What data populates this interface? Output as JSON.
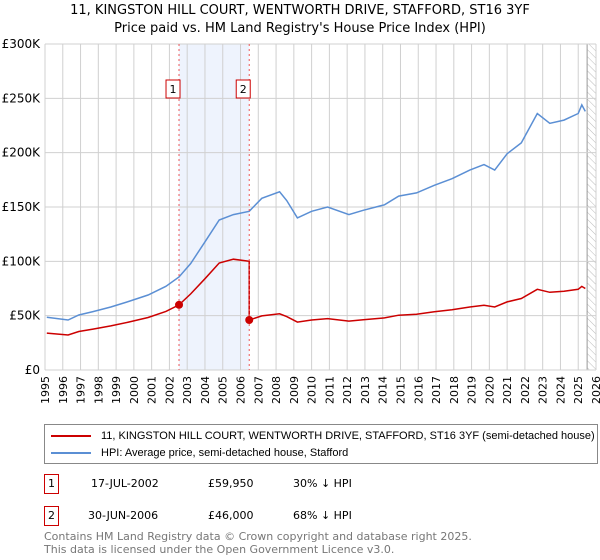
{
  "chart_data": {
    "type": "line",
    "title": "11, KINGSTON HILL COURT, WENTWORTH DRIVE, STAFFORD, ST16 3YF",
    "subtitle": "Price paid vs. HM Land Registry's House Price Index (HPI)",
    "xlim": [
      1995,
      2026
    ],
    "ylim": [
      0,
      300000
    ],
    "y_ticks": [
      {
        "v": 0,
        "label": "£0"
      },
      {
        "v": 50000,
        "label": "£50K"
      },
      {
        "v": 100000,
        "label": "£100K"
      },
      {
        "v": 150000,
        "label": "£150K"
      },
      {
        "v": 200000,
        "label": "£200K"
      },
      {
        "v": 250000,
        "label": "£250K"
      },
      {
        "v": 300000,
        "label": "£300K"
      }
    ],
    "x_ticks": [
      "1995",
      "1996",
      "1997",
      "1998",
      "1999",
      "2000",
      "2001",
      "2002",
      "2003",
      "2004",
      "2005",
      "2006",
      "2007",
      "2008",
      "2009",
      "2010",
      "2011",
      "2012",
      "2013",
      "2014",
      "2015",
      "2016",
      "2017",
      "2018",
      "2019",
      "2020",
      "2021",
      "2022",
      "2023",
      "2024",
      "2025",
      "2026"
    ],
    "grid": true,
    "shaded_range": [
      2002.54,
      2006.49
    ],
    "hatched_from": 2025.5,
    "series": [
      {
        "name": "11, KINGSTON HILL COURT, WENTWORTH DRIVE, STAFFORD, ST16 3YF (semi-detached house)",
        "color": "#cc0000",
        "x": [
          1995.1,
          1996.3,
          1996.9,
          1997.7,
          1998.7,
          1999.7,
          2000.8,
          2001.8,
          2002.54,
          2003.2,
          2004,
          2004.8,
          2005.6,
          2006.49,
          2006.49,
          2007.2,
          2008.2,
          2008.6,
          2009.2,
          2010,
          2010.9,
          2012.1,
          2012.9,
          2014.1,
          2014.9,
          2015.9,
          2016.9,
          2017.9,
          2018.9,
          2019.7,
          2020.3,
          2021,
          2021.8,
          2022.7,
          2023.4,
          2024.2,
          2025,
          2025.2,
          2025.4
        ],
        "y": [
          34000,
          32200,
          35400,
          37600,
          40600,
          44100,
          48300,
          53900,
          59950,
          70000,
          84000,
          98500,
          102000,
          100000,
          46000,
          49800,
          51700,
          49100,
          44100,
          46000,
          47300,
          45000,
          46300,
          47900,
          50400,
          51300,
          53600,
          55400,
          58000,
          59500,
          58000,
          62700,
          65800,
          74300,
          71500,
          72500,
          74300,
          76900,
          75000
        ]
      },
      {
        "name": "HPI: Average price, semi-detached house, Stafford",
        "color": "#5b8fd4",
        "x": [
          1995.1,
          1996.3,
          1996.9,
          1997.7,
          1998.7,
          1999.7,
          2000.8,
          2001.8,
          2002.54,
          2003.2,
          2004,
          2004.8,
          2005.6,
          2006.49,
          2007.2,
          2008.2,
          2008.6,
          2009.2,
          2010,
          2010.9,
          2012.1,
          2012.9,
          2014.1,
          2014.9,
          2015.9,
          2016.9,
          2017.9,
          2018.9,
          2019.7,
          2020.3,
          2021,
          2021.8,
          2022.7,
          2023.4,
          2024.2,
          2025,
          2025.2,
          2025.4
        ],
        "y": [
          48500,
          46000,
          50600,
          53700,
          58000,
          63000,
          69000,
          77000,
          85600,
          98000,
          118000,
          138000,
          143000,
          146000,
          158000,
          164000,
          156000,
          140000,
          146000,
          150000,
          143000,
          147000,
          152000,
          160000,
          163000,
          170000,
          176000,
          184000,
          189000,
          184000,
          199000,
          209000,
          236000,
          227000,
          230000,
          236000,
          244000,
          238000
        ]
      }
    ],
    "sales": [
      {
        "marker": "1",
        "x": 2002.54,
        "y": 59950,
        "date": "17-JUL-2002",
        "price": "£59,950",
        "hpi_diff": "30% ↓ HPI"
      },
      {
        "marker": "2",
        "x": 2006.49,
        "y": 46000,
        "date": "30-JUN-2006",
        "price": "£46,000",
        "hpi_diff": "68% ↓ HPI"
      }
    ]
  },
  "footer": {
    "line1": "Contains HM Land Registry data © Crown copyright and database right 2025.",
    "line2": "This data is licensed under the Open Government Licence v3.0."
  }
}
